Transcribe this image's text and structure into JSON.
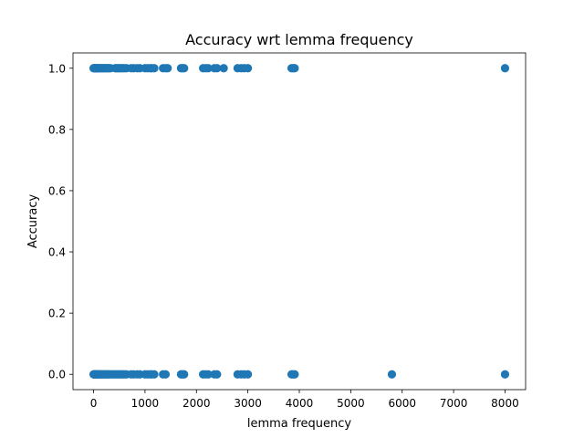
{
  "chart_data": {
    "type": "scatter",
    "title": "Accuracy wrt lemma frequency",
    "xlabel": "lemma frequency",
    "ylabel": "Accuracy",
    "xlim": [
      -400,
      8400
    ],
    "ylim": [
      -0.05,
      1.05
    ],
    "grid": false,
    "xticks": [
      {
        "value": 0,
        "label": "0"
      },
      {
        "value": 1000,
        "label": "1000"
      },
      {
        "value": 2000,
        "label": "2000"
      },
      {
        "value": 3000,
        "label": "3000"
      },
      {
        "value": 4000,
        "label": "4000"
      },
      {
        "value": 5000,
        "label": "5000"
      },
      {
        "value": 6000,
        "label": "6000"
      },
      {
        "value": 7000,
        "label": "7000"
      },
      {
        "value": 8000,
        "label": "8000"
      }
    ],
    "yticks": [
      {
        "value": 0.0,
        "label": "0.0"
      },
      {
        "value": 0.2,
        "label": "0.2"
      },
      {
        "value": 0.4,
        "label": "0.4"
      },
      {
        "value": 0.6,
        "label": "0.6"
      },
      {
        "value": 0.8,
        "label": "0.8"
      },
      {
        "value": 1.0,
        "label": "1.0"
      }
    ],
    "series": [
      {
        "color": "#1f77b4",
        "points": [
          {
            "x": 0,
            "y": 1
          },
          {
            "x": 10,
            "y": 1
          },
          {
            "x": 20,
            "y": 1
          },
          {
            "x": 30,
            "y": 1
          },
          {
            "x": 40,
            "y": 1
          },
          {
            "x": 50,
            "y": 1
          },
          {
            "x": 60,
            "y": 1
          },
          {
            "x": 75,
            "y": 1
          },
          {
            "x": 90,
            "y": 1
          },
          {
            "x": 105,
            "y": 1
          },
          {
            "x": 120,
            "y": 1
          },
          {
            "x": 140,
            "y": 1
          },
          {
            "x": 160,
            "y": 1
          },
          {
            "x": 180,
            "y": 1
          },
          {
            "x": 200,
            "y": 1
          },
          {
            "x": 220,
            "y": 1
          },
          {
            "x": 240,
            "y": 1
          },
          {
            "x": 260,
            "y": 1
          },
          {
            "x": 280,
            "y": 1
          },
          {
            "x": 300,
            "y": 1
          },
          {
            "x": 330,
            "y": 1
          },
          {
            "x": 420,
            "y": 1
          },
          {
            "x": 450,
            "y": 1
          },
          {
            "x": 480,
            "y": 1
          },
          {
            "x": 510,
            "y": 1
          },
          {
            "x": 540,
            "y": 1
          },
          {
            "x": 570,
            "y": 1
          },
          {
            "x": 600,
            "y": 1
          },
          {
            "x": 640,
            "y": 1
          },
          {
            "x": 730,
            "y": 1
          },
          {
            "x": 780,
            "y": 1
          },
          {
            "x": 850,
            "y": 1
          },
          {
            "x": 900,
            "y": 1
          },
          {
            "x": 1000,
            "y": 1
          },
          {
            "x": 1050,
            "y": 1
          },
          {
            "x": 1100,
            "y": 1
          },
          {
            "x": 1130,
            "y": 1
          },
          {
            "x": 1180,
            "y": 1
          },
          {
            "x": 1350,
            "y": 1
          },
          {
            "x": 1400,
            "y": 1
          },
          {
            "x": 1440,
            "y": 1
          },
          {
            "x": 1700,
            "y": 1
          },
          {
            "x": 1730,
            "y": 1
          },
          {
            "x": 1760,
            "y": 1
          },
          {
            "x": 2130,
            "y": 1
          },
          {
            "x": 2180,
            "y": 1
          },
          {
            "x": 2230,
            "y": 1
          },
          {
            "x": 2350,
            "y": 1
          },
          {
            "x": 2400,
            "y": 1
          },
          {
            "x": 2530,
            "y": 1
          },
          {
            "x": 2800,
            "y": 1
          },
          {
            "x": 2870,
            "y": 1
          },
          {
            "x": 2930,
            "y": 1
          },
          {
            "x": 3000,
            "y": 1
          },
          {
            "x": 3850,
            "y": 1
          },
          {
            "x": 3880,
            "y": 1
          },
          {
            "x": 3910,
            "y": 1
          },
          {
            "x": 8000,
            "y": 1
          },
          {
            "x": 0,
            "y": 0
          },
          {
            "x": 10,
            "y": 0
          },
          {
            "x": 20,
            "y": 0
          },
          {
            "x": 30,
            "y": 0
          },
          {
            "x": 40,
            "y": 0
          },
          {
            "x": 50,
            "y": 0
          },
          {
            "x": 60,
            "y": 0
          },
          {
            "x": 75,
            "y": 0
          },
          {
            "x": 90,
            "y": 0
          },
          {
            "x": 105,
            "y": 0
          },
          {
            "x": 120,
            "y": 0
          },
          {
            "x": 140,
            "y": 0
          },
          {
            "x": 160,
            "y": 0
          },
          {
            "x": 180,
            "y": 0
          },
          {
            "x": 200,
            "y": 0
          },
          {
            "x": 220,
            "y": 0
          },
          {
            "x": 240,
            "y": 0
          },
          {
            "x": 260,
            "y": 0
          },
          {
            "x": 280,
            "y": 0
          },
          {
            "x": 300,
            "y": 0
          },
          {
            "x": 330,
            "y": 0
          },
          {
            "x": 360,
            "y": 0
          },
          {
            "x": 390,
            "y": 0
          },
          {
            "x": 420,
            "y": 0
          },
          {
            "x": 450,
            "y": 0
          },
          {
            "x": 480,
            "y": 0
          },
          {
            "x": 510,
            "y": 0
          },
          {
            "x": 540,
            "y": 0
          },
          {
            "x": 570,
            "y": 0
          },
          {
            "x": 600,
            "y": 0
          },
          {
            "x": 640,
            "y": 0
          },
          {
            "x": 730,
            "y": 0
          },
          {
            "x": 780,
            "y": 0
          },
          {
            "x": 850,
            "y": 0
          },
          {
            "x": 900,
            "y": 0
          },
          {
            "x": 1000,
            "y": 0
          },
          {
            "x": 1050,
            "y": 0
          },
          {
            "x": 1100,
            "y": 0
          },
          {
            "x": 1130,
            "y": 0
          },
          {
            "x": 1180,
            "y": 0
          },
          {
            "x": 1350,
            "y": 0
          },
          {
            "x": 1400,
            "y": 0
          },
          {
            "x": 1700,
            "y": 0
          },
          {
            "x": 1730,
            "y": 0
          },
          {
            "x": 1760,
            "y": 0
          },
          {
            "x": 2130,
            "y": 0
          },
          {
            "x": 2180,
            "y": 0
          },
          {
            "x": 2230,
            "y": 0
          },
          {
            "x": 2350,
            "y": 0
          },
          {
            "x": 2400,
            "y": 0
          },
          {
            "x": 2800,
            "y": 0
          },
          {
            "x": 2870,
            "y": 0
          },
          {
            "x": 2930,
            "y": 0
          },
          {
            "x": 3000,
            "y": 0
          },
          {
            "x": 3850,
            "y": 0
          },
          {
            "x": 3880,
            "y": 0
          },
          {
            "x": 3910,
            "y": 0
          },
          {
            "x": 5800,
            "y": 0
          },
          {
            "x": 8000,
            "y": 0
          }
        ]
      }
    ]
  }
}
